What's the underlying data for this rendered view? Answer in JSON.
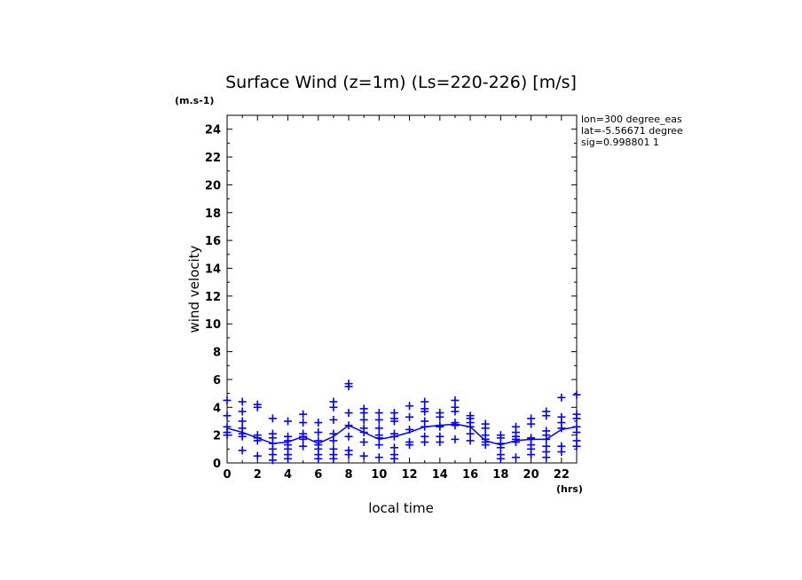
{
  "chart_data": {
    "type": "scatter",
    "title": "Surface Wind (z=1m) (Ls=220-226) [m/s]",
    "xlabel": "local time",
    "ylabel": "wind velocity",
    "x_unit": "(hrs)",
    "y_unit": "(m.s-1)",
    "xlim": [
      0,
      23
    ],
    "ylim": [
      0,
      25
    ],
    "x_ticks": [
      0,
      2,
      4,
      6,
      8,
      10,
      12,
      14,
      16,
      18,
      20,
      22
    ],
    "y_ticks": [
      0,
      2,
      4,
      6,
      8,
      10,
      12,
      14,
      16,
      18,
      20,
      22,
      24
    ],
    "annotations": [
      "lon=300 degree_eas",
      "lat=-5.56671 degree",
      "sig=0.998801 1"
    ],
    "color": "#0000ff",
    "series": [
      {
        "type": "scatter",
        "marker": "plus",
        "points": [
          [
            0,
            4.5
          ],
          [
            0,
            3.4
          ],
          [
            0,
            2.6
          ],
          [
            0,
            2.2
          ],
          [
            0,
            2.0
          ],
          [
            1,
            4.4
          ],
          [
            1,
            3.7
          ],
          [
            1,
            3.0
          ],
          [
            1,
            2.5
          ],
          [
            1,
            2.1
          ],
          [
            1,
            1.9
          ],
          [
            1,
            0.9
          ],
          [
            2,
            4.2
          ],
          [
            2,
            4.0
          ],
          [
            2,
            2.0
          ],
          [
            2,
            1.8
          ],
          [
            2,
            1.6
          ],
          [
            2,
            0.5
          ],
          [
            3,
            3.2
          ],
          [
            3,
            2.1
          ],
          [
            3,
            1.8
          ],
          [
            3,
            1.4
          ],
          [
            3,
            1.0
          ],
          [
            3,
            0.6
          ],
          [
            3,
            0.2
          ],
          [
            4,
            3.0
          ],
          [
            4,
            1.9
          ],
          [
            4,
            1.6
          ],
          [
            4,
            1.3
          ],
          [
            4,
            1.0
          ],
          [
            4,
            0.6
          ],
          [
            4,
            0.3
          ],
          [
            5,
            3.5
          ],
          [
            5,
            2.9
          ],
          [
            5,
            2.1
          ],
          [
            5,
            1.9
          ],
          [
            5,
            1.7
          ],
          [
            5,
            1.2
          ],
          [
            6,
            2.9
          ],
          [
            6,
            2.2
          ],
          [
            6,
            1.6
          ],
          [
            6,
            1.3
          ],
          [
            6,
            1.0
          ],
          [
            6,
            0.6
          ],
          [
            6,
            0.3
          ],
          [
            7,
            4.4
          ],
          [
            7,
            4.0
          ],
          [
            7,
            3.1
          ],
          [
            7,
            2.1
          ],
          [
            7,
            1.6
          ],
          [
            7,
            1.0
          ],
          [
            7,
            0.6
          ],
          [
            7,
            0.3
          ],
          [
            8,
            5.7
          ],
          [
            8,
            5.5
          ],
          [
            8,
            3.6
          ],
          [
            8,
            2.7
          ],
          [
            8,
            1.9
          ],
          [
            8,
            0.9
          ],
          [
            8,
            0.6
          ],
          [
            9,
            3.9
          ],
          [
            9,
            3.6
          ],
          [
            9,
            3.1
          ],
          [
            9,
            2.5
          ],
          [
            9,
            2.2
          ],
          [
            9,
            1.5
          ],
          [
            9,
            0.5
          ],
          [
            10,
            3.6
          ],
          [
            10,
            3.1
          ],
          [
            10,
            2.5
          ],
          [
            10,
            2.0
          ],
          [
            10,
            1.8
          ],
          [
            10,
            1.3
          ],
          [
            10,
            0.4
          ],
          [
            11,
            3.6
          ],
          [
            11,
            3.2
          ],
          [
            11,
            3.0
          ],
          [
            11,
            2.1
          ],
          [
            11,
            1.9
          ],
          [
            11,
            1.1
          ],
          [
            11,
            0.6
          ],
          [
            11,
            0.3
          ],
          [
            12,
            4.1
          ],
          [
            12,
            3.3
          ],
          [
            12,
            2.4
          ],
          [
            12,
            1.5
          ],
          [
            12,
            1.3
          ],
          [
            13,
            4.4
          ],
          [
            13,
            3.9
          ],
          [
            13,
            3.7
          ],
          [
            13,
            3.0
          ],
          [
            13,
            2.6
          ],
          [
            13,
            1.9
          ],
          [
            13,
            1.5
          ],
          [
            14,
            3.6
          ],
          [
            14,
            3.3
          ],
          [
            14,
            2.7
          ],
          [
            14,
            2.6
          ],
          [
            14,
            1.9
          ],
          [
            14,
            1.5
          ],
          [
            15,
            4.5
          ],
          [
            15,
            4.0
          ],
          [
            15,
            3.7
          ],
          [
            15,
            2.9
          ],
          [
            15,
            2.7
          ],
          [
            15,
            1.7
          ],
          [
            16,
            3.4
          ],
          [
            16,
            3.2
          ],
          [
            16,
            2.9
          ],
          [
            16,
            2.6
          ],
          [
            16,
            2.1
          ],
          [
            16,
            1.6
          ],
          [
            17,
            2.8
          ],
          [
            17,
            2.5
          ],
          [
            17,
            2.0
          ],
          [
            17,
            1.7
          ],
          [
            17,
            1.5
          ],
          [
            17,
            1.3
          ],
          [
            18,
            2.0
          ],
          [
            18,
            1.8
          ],
          [
            18,
            1.4
          ],
          [
            18,
            1.1
          ],
          [
            18,
            0.6
          ],
          [
            18,
            0.3
          ],
          [
            19,
            2.6
          ],
          [
            19,
            2.2
          ],
          [
            19,
            1.9
          ],
          [
            19,
            1.7
          ],
          [
            19,
            1.5
          ],
          [
            19,
            0.4
          ],
          [
            20,
            3.2
          ],
          [
            20,
            2.8
          ],
          [
            20,
            1.8
          ],
          [
            20,
            1.7
          ],
          [
            20,
            1.3
          ],
          [
            20,
            1.0
          ],
          [
            20,
            0.6
          ],
          [
            21,
            3.7
          ],
          [
            21,
            3.4
          ],
          [
            21,
            2.3
          ],
          [
            21,
            2.0
          ],
          [
            21,
            1.7
          ],
          [
            21,
            1.2
          ],
          [
            21,
            0.8
          ],
          [
            21,
            0.4
          ],
          [
            22,
            4.7
          ],
          [
            22,
            3.3
          ],
          [
            22,
            2.9
          ],
          [
            22,
            2.5
          ],
          [
            22,
            1.2
          ],
          [
            22,
            0.8
          ],
          [
            23,
            4.9
          ],
          [
            23,
            3.5
          ],
          [
            23,
            3.2
          ],
          [
            23,
            2.6
          ],
          [
            23,
            2.2
          ],
          [
            23,
            1.6
          ],
          [
            23,
            1.2
          ]
        ]
      },
      {
        "type": "line",
        "x": [
          0,
          1,
          2,
          3,
          4,
          5,
          6,
          7,
          8,
          9,
          10,
          11,
          12,
          13,
          14,
          15,
          16,
          17,
          18,
          19,
          20,
          21,
          22,
          23
        ],
        "y": [
          2.5,
          2.2,
          1.8,
          1.4,
          1.5,
          1.9,
          1.4,
          1.9,
          2.7,
          2.2,
          1.7,
          1.9,
          2.2,
          2.6,
          2.7,
          2.8,
          2.6,
          1.6,
          1.3,
          1.6,
          1.7,
          1.7,
          2.4,
          2.6
        ]
      }
    ]
  }
}
